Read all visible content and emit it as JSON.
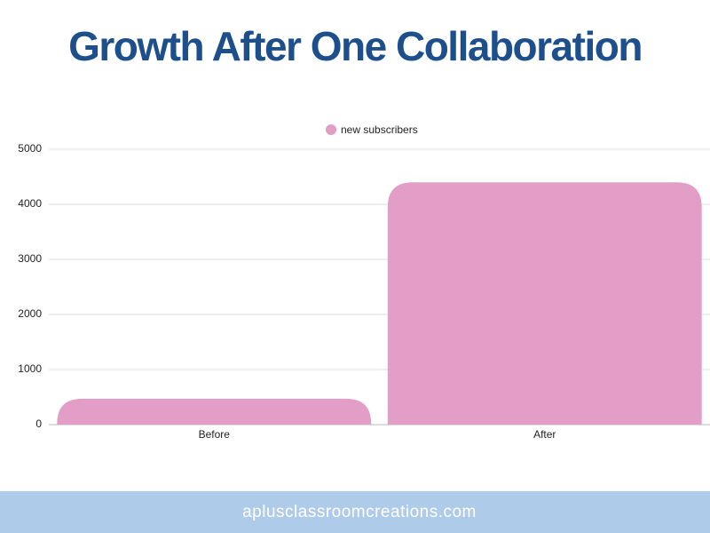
{
  "chart_data": {
    "type": "bar",
    "title": "Growth After One Collaboration",
    "categories": [
      "Before",
      "After"
    ],
    "series": [
      {
        "name": "new subscribers",
        "color": "#e29ec6",
        "values": [
          470,
          4400
        ]
      }
    ],
    "ylim": [
      0,
      5000
    ],
    "yticks": [
      0,
      1000,
      2000,
      3000,
      4000,
      5000
    ],
    "grid": true,
    "legend": "top"
  },
  "footer": "aplusclassroomcreations.com"
}
